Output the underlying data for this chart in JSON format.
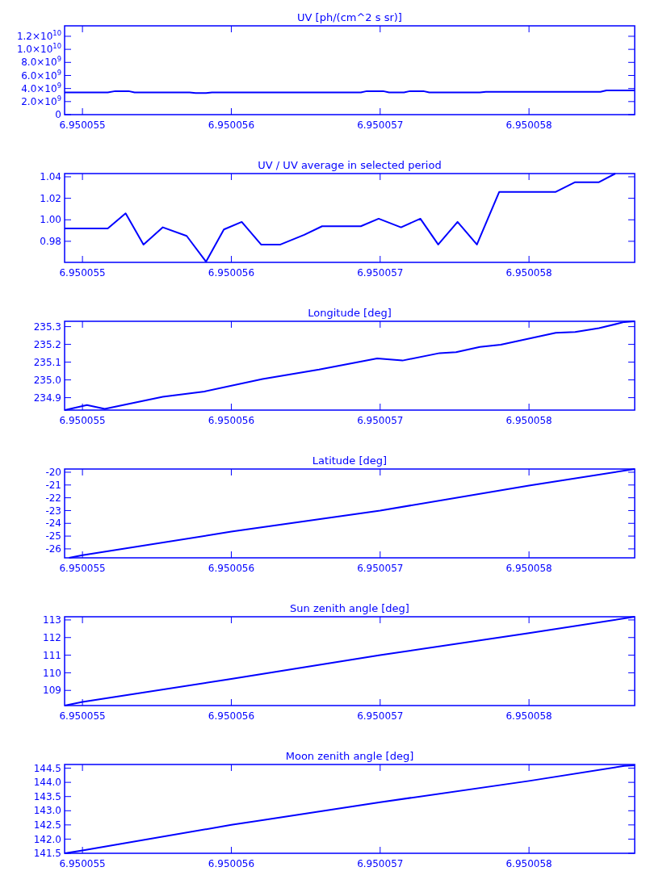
{
  "chart_data": [
    {
      "type": "line",
      "title": "UV [ph/(cm^2 s sr)]",
      "xlim": [
        6.95005488,
        6.95005871
      ],
      "xticks": [
        6.950055,
        6.950056,
        6.950057,
        6.950058
      ],
      "ylim": [
        0,
        13600000000.0
      ],
      "yticks": [
        {
          "value": 0,
          "label": "0"
        },
        {
          "value": 2000000000.0,
          "label": "2.0×10$^{9}$"
        },
        {
          "value": 4000000000.0,
          "label": "4.0×10$^{9}$"
        },
        {
          "value": 6000000000.0,
          "label": "6.0×10$^{9}$"
        },
        {
          "value": 8000000000.0,
          "label": "8.0×10$^{9}$"
        },
        {
          "value": 10000000000.0,
          "label": "1.0×10$^{10}$"
        },
        {
          "value": 12000000000.0,
          "label": "1.2×10$^{10}$"
        }
      ],
      "series": [
        {
          "color": "#0000ff",
          "x": [
            6.95005488,
            6.95005517,
            6.95005522,
            6.95005531,
            6.95005535,
            6.95005572,
            6.95005576,
            6.95005583,
            6.95005587,
            6.95005687,
            6.95005691,
            6.95005702,
            6.95005706,
            6.95005716,
            6.9500572,
            6.95005729,
            6.95005733,
            6.95005767,
            6.95005771,
            6.95005848,
            6.95005852,
            6.95005871
          ],
          "values": [
            3400000000.0,
            3400000000.0,
            3600000000.0,
            3600000000.0,
            3400000000.0,
            3400000000.0,
            3300000000.0,
            3300000000.0,
            3400000000.0,
            3400000000.0,
            3600000000.0,
            3600000000.0,
            3400000000.0,
            3400000000.0,
            3600000000.0,
            3600000000.0,
            3400000000.0,
            3400000000.0,
            3500000000.0,
            3500000000.0,
            3700000000.0,
            3700000000.0
          ]
        }
      ]
    },
    {
      "type": "line",
      "title": "UV / UV average in selected period",
      "xlim": [
        6.95005488,
        6.95005871
      ],
      "xticks": [
        6.950055,
        6.950056,
        6.950057,
        6.950058
      ],
      "ylim": [
        0.9604,
        1.043
      ],
      "yticks": [
        {
          "value": 0.98,
          "label": "0.98"
        },
        {
          "value": 1,
          "label": "1.00"
        },
        {
          "value": 1.02,
          "label": "1.02"
        },
        {
          "value": 1.04,
          "label": "1.04"
        }
      ],
      "series": [
        {
          "color": "#0000ff",
          "x": [
            6.95005488,
            6.95005517,
            6.95005529,
            6.95005541,
            6.95005554,
            6.9500557,
            6.95005583,
            6.95005595,
            6.95005607,
            6.9500562,
            6.95005633,
            6.95005649,
            6.95005661,
            6.95005687,
            6.95005699,
            6.95005714,
            6.95005727,
            6.95005739,
            6.95005752,
            6.95005765,
            6.9500578,
            6.95005818,
            6.95005831,
            6.95005847,
            6.95005858
          ],
          "values": [
            0.992,
            0.992,
            1.006,
            0.977,
            0.993,
            0.985,
            0.961,
            0.991,
            0.998,
            0.977,
            0.977,
            0.986,
            0.994,
            0.994,
            1.001,
            0.993,
            1.001,
            0.977,
            0.998,
            0.977,
            1.026,
            1.026,
            1.035,
            1.035,
            1.043
          ]
        }
      ]
    },
    {
      "type": "line",
      "title": "Longitude [deg]",
      "xlim": [
        6.95005488,
        6.95005871
      ],
      "xticks": [
        6.950055,
        6.950056,
        6.950057,
        6.950058
      ],
      "ylim": [
        234.83,
        235.33
      ],
      "yticks": [
        {
          "value": 234.9,
          "label": "234.9"
        },
        {
          "value": 235,
          "label": "235.0"
        },
        {
          "value": 235.1,
          "label": "235.1"
        },
        {
          "value": 235.2,
          "label": "235.2"
        },
        {
          "value": 235.3,
          "label": "235.3"
        }
      ],
      "series": [
        {
          "color": "#0000ff",
          "x": [
            6.95005488,
            6.95005503,
            6.95005515,
            6.95005554,
            6.95005582,
            6.95005621,
            6.95005659,
            6.95005698,
            6.95005715,
            6.9500574,
            6.95005751,
            6.95005767,
            6.95005781,
            6.95005818,
            6.95005831,
            6.95005847,
            6.95005864,
            6.95005871
          ],
          "values": [
            234.83,
            234.858,
            234.837,
            234.905,
            234.935,
            235.005,
            235.058,
            235.121,
            235.109,
            235.151,
            235.156,
            235.186,
            235.198,
            235.265,
            235.27,
            235.291,
            235.326,
            235.33
          ]
        }
      ]
    },
    {
      "type": "line",
      "title": "Latitude [deg]",
      "xlim": [
        6.95005488,
        6.95005871
      ],
      "xticks": [
        6.950055,
        6.950056,
        6.950057,
        6.950058
      ],
      "ylim": [
        -26.7,
        -19.75
      ],
      "yticks": [
        -26,
        -25,
        -24,
        -23,
        -22,
        -21,
        -20
      ],
      "series": [
        {
          "color": "#0000ff",
          "x": [
            6.95005491,
            6.950055,
            6.950056,
            6.950057,
            6.950058,
            6.95005871
          ],
          "values": [
            -26.7,
            -26.5,
            -24.65,
            -23,
            -21.05,
            -19.75
          ]
        }
      ]
    },
    {
      "type": "line",
      "title": "Sun zenith angle [deg]",
      "xlim": [
        6.95005488,
        6.95005871
      ],
      "xticks": [
        6.950055,
        6.950056,
        6.950057,
        6.950058
      ],
      "ylim": [
        108.14,
        113.18
      ],
      "yticks": [
        109,
        110,
        111,
        112,
        113
      ],
      "series": [
        {
          "color": "#0000ff",
          "x": [
            6.95005488,
            6.950055,
            6.950056,
            6.950057,
            6.950058,
            6.95005871
          ],
          "values": [
            108.14,
            108.35,
            109.65,
            111,
            112.25,
            113.18
          ]
        }
      ]
    },
    {
      "type": "line",
      "title": "Moon zenith angle [deg]",
      "xlim": [
        6.95005488,
        6.95005871
      ],
      "xticks": [
        6.950055,
        6.950056,
        6.950057,
        6.950058
      ],
      "ylim": [
        141.5,
        144.63
      ],
      "yticks": [
        {
          "value": 141.5,
          "label": "141.5"
        },
        {
          "value": 142,
          "label": "142.0"
        },
        {
          "value": 142.5,
          "label": "142.5"
        },
        {
          "value": 143,
          "label": "143.0"
        },
        {
          "value": 143.5,
          "label": "143.5"
        },
        {
          "value": 144,
          "label": "144.0"
        },
        {
          "value": 144.5,
          "label": "144.5"
        }
      ],
      "series": [
        {
          "color": "#0000ff",
          "x": [
            6.95005488,
            6.950055,
            6.950056,
            6.950057,
            6.950058,
            6.95005864,
            6.95005871
          ],
          "values": [
            141.5,
            141.6,
            142.5,
            143.3,
            144.05,
            144.58,
            144.6
          ]
        }
      ]
    }
  ]
}
